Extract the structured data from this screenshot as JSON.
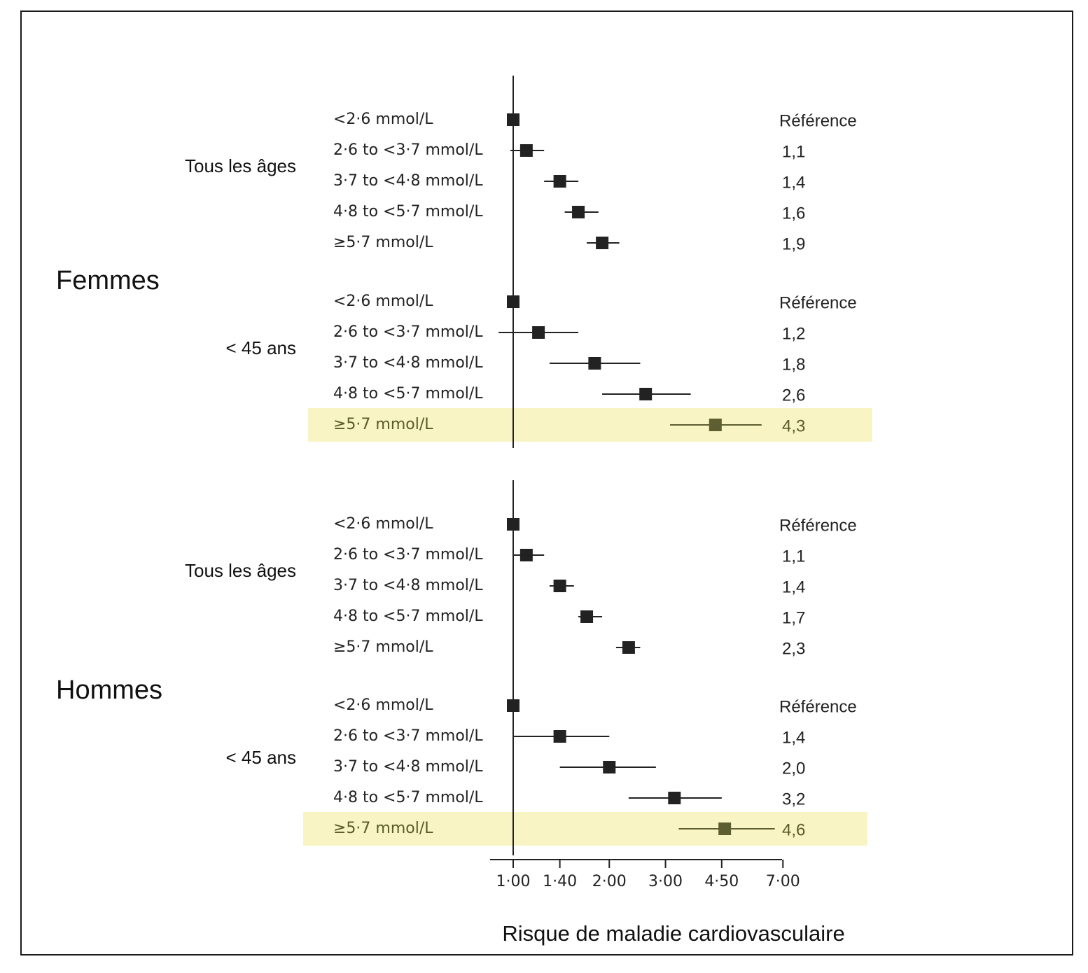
{
  "chart_data": {
    "type": "forest",
    "xlabel": "Risque de maladie cardiovasculaire",
    "x_scale": "log",
    "x_ticks": [
      "1·00",
      "1·40",
      "2·00",
      "3·00",
      "4·50",
      "7·00"
    ],
    "x_tick_values": [
      1.0,
      1.4,
      2.0,
      3.0,
      4.5,
      7.0
    ],
    "highlight_color": "#f8f4c4",
    "highlight_text_color": "#5a5a2a",
    "marker_color": "#222222",
    "highlight_marker_color": "#5e5e33",
    "panels": [
      {
        "sex": "Femmes",
        "groups": [
          {
            "label": "Tous les âges",
            "rows": [
              {
                "category": "<2·6 mmol/L",
                "est": 1.0,
                "lo": null,
                "hi": null,
                "value_label": "Référence",
                "highlight": false
              },
              {
                "category": "2·6 to <3·7 mmol/L",
                "est": 1.1,
                "lo": 0.98,
                "hi": 1.25,
                "value_label": "1,1",
                "highlight": false
              },
              {
                "category": "3·7 to <4·8 mmol/L",
                "est": 1.4,
                "lo": 1.25,
                "hi": 1.6,
                "value_label": "1,4",
                "highlight": false
              },
              {
                "category": "4·8 to <5·7 mmol/L",
                "est": 1.6,
                "lo": 1.45,
                "hi": 1.85,
                "value_label": "1,6",
                "highlight": false
              },
              {
                "category": "≥5·7 mmol/L",
                "est": 1.9,
                "lo": 1.7,
                "hi": 2.15,
                "value_label": "1,9",
                "highlight": false
              }
            ]
          },
          {
            "label": "< 45 ans",
            "rows": [
              {
                "category": "<2·6 mmol/L",
                "est": 1.0,
                "lo": null,
                "hi": null,
                "value_label": "Référence",
                "highlight": false
              },
              {
                "category": "2·6 to <3·7 mmol/L",
                "est": 1.2,
                "lo": 0.9,
                "hi": 1.6,
                "value_label": "1,2",
                "highlight": false
              },
              {
                "category": "3·7 to <4·8 mmol/L",
                "est": 1.8,
                "lo": 1.3,
                "hi": 2.5,
                "value_label": "1,8",
                "highlight": false
              },
              {
                "category": "4·8 to <5·7 mmol/L",
                "est": 2.6,
                "lo": 1.9,
                "hi": 3.6,
                "value_label": "2,6",
                "highlight": false
              },
              {
                "category": "≥5·7 mmol/L",
                "est": 4.3,
                "lo": 3.1,
                "hi": 6.0,
                "value_label": "4,3",
                "highlight": true
              }
            ]
          }
        ]
      },
      {
        "sex": "Hommes",
        "groups": [
          {
            "label": "Tous les âges",
            "rows": [
              {
                "category": "<2·6 mmol/L",
                "est": 1.0,
                "lo": null,
                "hi": null,
                "value_label": "Référence",
                "highlight": false
              },
              {
                "category": "2·6 to <3·7 mmol/L",
                "est": 1.1,
                "lo": 1.0,
                "hi": 1.25,
                "value_label": "1,1",
                "highlight": false
              },
              {
                "category": "3·7 to <4·8 mmol/L",
                "est": 1.4,
                "lo": 1.3,
                "hi": 1.55,
                "value_label": "1,4",
                "highlight": false
              },
              {
                "category": "4·8 to <5·7 mmol/L",
                "est": 1.7,
                "lo": 1.6,
                "hi": 1.9,
                "value_label": "1,7",
                "highlight": false
              },
              {
                "category": "≥5·7 mmol/L",
                "est": 2.3,
                "lo": 2.1,
                "hi": 2.5,
                "value_label": "2,3",
                "highlight": false
              }
            ]
          },
          {
            "label": "< 45 ans",
            "rows": [
              {
                "category": "<2·6 mmol/L",
                "est": 1.0,
                "lo": null,
                "hi": null,
                "value_label": "Référence",
                "highlight": false
              },
              {
                "category": "2·6 to <3·7 mmol/L",
                "est": 1.4,
                "lo": 1.0,
                "hi": 2.0,
                "value_label": "1,4",
                "highlight": false
              },
              {
                "category": "3·7 to <4·8 mmol/L",
                "est": 2.0,
                "lo": 1.4,
                "hi": 2.8,
                "value_label": "2,0",
                "highlight": false
              },
              {
                "category": "4·8 to <5·7 mmol/L",
                "est": 3.2,
                "lo": 2.3,
                "hi": 4.5,
                "value_label": "3,2",
                "highlight": false
              },
              {
                "category": "≥5·7 mmol/L",
                "est": 4.6,
                "lo": 3.3,
                "hi": 6.6,
                "value_label": "4,6",
                "highlight": true
              }
            ]
          }
        ]
      }
    ]
  }
}
